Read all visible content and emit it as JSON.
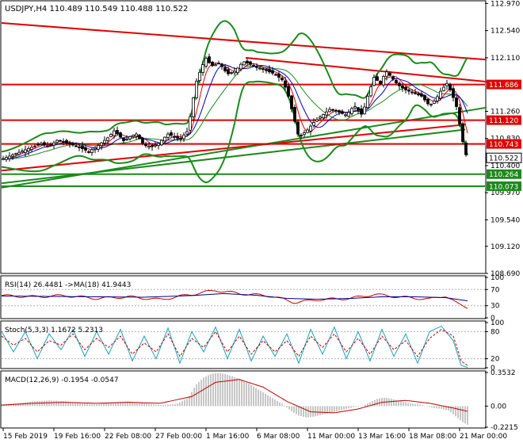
{
  "colors": {
    "candle": "#000000",
    "bollinger": "#1b8a1b",
    "trendline_red": "#e00000",
    "trendline_green": "#1b8a1b",
    "ma_fast": "#e00000",
    "ma_slow": "#0000c0",
    "rsi_line": "#c00000",
    "rsi_ma": "#00008b",
    "stoch_main": "#1aa3b5",
    "stoch_signal": "#c00000",
    "macd_hist": "#a0a0a0",
    "macd_signal": "#c00000",
    "label_red_bg": "#e00000",
    "label_green_bg": "#1b8a1b"
  },
  "chart_data": [
    {
      "type": "candlestick",
      "title": "USDJPY,H4  110.489 110.549 110.488 110.522",
      "ylim": [
        108.69,
        113.0
      ],
      "y_ticks": [
        "112.970",
        "112.540",
        "112.110",
        "111.260",
        "110.830",
        "110.400",
        "109.970",
        "109.540",
        "109.120",
        "108.690"
      ],
      "x_ticks": [
        "15 Feb 2019",
        "19 Feb 16:00",
        "22 Feb 08:00",
        "27 Feb 00:00",
        "1 Mar 16:00",
        "6 Mar 08:00",
        "11 Mar 00:00",
        "13 Mar 16:00",
        "18 Mar 08:00",
        "21 Mar 00:00"
      ],
      "close_path": [
        [
          0,
          110.5
        ],
        [
          20,
          110.6
        ],
        [
          40,
          110.7
        ],
        [
          50,
          110.75
        ],
        [
          60,
          110.7
        ],
        [
          70,
          110.8
        ],
        [
          85,
          110.75
        ],
        [
          100,
          110.68
        ],
        [
          110,
          110.62
        ],
        [
          120,
          110.7
        ],
        [
          135,
          110.85
        ],
        [
          142,
          110.95
        ],
        [
          148,
          110.88
        ],
        [
          155,
          110.78
        ],
        [
          160,
          110.85
        ],
        [
          170,
          110.9
        ],
        [
          180,
          110.72
        ],
        [
          190,
          110.7
        ],
        [
          198,
          110.75
        ],
        [
          210,
          110.9
        ],
        [
          225,
          110.82
        ],
        [
          235,
          110.95
        ],
        [
          245,
          111.7
        ],
        [
          252,
          111.95
        ],
        [
          258,
          112.1
        ],
        [
          265,
          111.98
        ],
        [
          275,
          112.02
        ],
        [
          285,
          111.85
        ],
        [
          295,
          111.9
        ],
        [
          305,
          112.05
        ],
        [
          315,
          112.0
        ],
        [
          325,
          111.95
        ],
        [
          335,
          111.9
        ],
        [
          345,
          111.85
        ],
        [
          355,
          111.75
        ],
        [
          362,
          111.5
        ],
        [
          368,
          111.2
        ],
        [
          375,
          110.85
        ],
        [
          385,
          110.95
        ],
        [
          395,
          111.1
        ],
        [
          405,
          111.2
        ],
        [
          415,
          111.3
        ],
        [
          425,
          111.25
        ],
        [
          435,
          111.2
        ],
        [
          445,
          111.35
        ],
        [
          455,
          111.2
        ],
        [
          462,
          111.5
        ],
        [
          470,
          111.8
        ],
        [
          478,
          111.7
        ],
        [
          485,
          111.9
        ],
        [
          492,
          111.8
        ],
        [
          500,
          111.68
        ],
        [
          510,
          111.6
        ],
        [
          520,
          111.55
        ],
        [
          530,
          111.5
        ],
        [
          540,
          111.35
        ],
        [
          548,
          111.45
        ],
        [
          555,
          111.6
        ],
        [
          562,
          111.7
        ],
        [
          568,
          111.55
        ],
        [
          575,
          111.3
        ],
        [
          580,
          110.9
        ],
        [
          585,
          110.6
        ],
        [
          588,
          110.52
        ]
      ],
      "price_lines": [
        {
          "name": "level-111686",
          "label": "111.686",
          "value": 111.686,
          "color": "red"
        },
        {
          "name": "level-111120",
          "label": "111.120",
          "value": 111.12,
          "color": "red"
        },
        {
          "name": "level-110743",
          "label": "110.743",
          "value": 110.743,
          "color": "red"
        },
        {
          "name": "level-110264",
          "label": "110.264",
          "value": 110.264,
          "color": "green"
        },
        {
          "name": "level-110073",
          "label": "110.073",
          "value": 110.073,
          "color": "green"
        }
      ],
      "current_price": {
        "label": "110.522",
        "value": 110.522
      },
      "trendlines": [
        {
          "name": "downtrend-long",
          "color": "red",
          "points": [
            [
              0,
              112.66
            ],
            [
              612,
              112.08
            ]
          ]
        },
        {
          "name": "downtrend-short",
          "color": "red",
          "points": [
            [
              308,
              112.11
            ],
            [
              612,
              111.73
            ]
          ]
        },
        {
          "name": "uptrend-red-lower",
          "color": "red",
          "points": [
            [
              0,
              110.32
            ],
            [
              585,
              111.05
            ]
          ]
        },
        {
          "name": "uptrend-green-1",
          "color": "green",
          "points": [
            [
              0,
              110.05
            ],
            [
              612,
              111.32
            ]
          ]
        },
        {
          "name": "uptrend-green-2",
          "color": "green",
          "points": [
            [
              0,
              110.12
            ],
            [
              585,
              110.97
            ]
          ]
        }
      ]
    },
    {
      "type": "line",
      "title": "RSI(14) 26.4481  ->MA(18) 41.9443",
      "ylim": [
        0,
        100
      ],
      "y_ticks": [
        "100",
        "70",
        "30",
        "0"
      ],
      "series": [
        {
          "name": "RSI(14)",
          "points": [
            [
              0,
              55
            ],
            [
              40,
              52
            ],
            [
              80,
              55
            ],
            [
              120,
              48
            ],
            [
              160,
              52
            ],
            [
              200,
              45
            ],
            [
              240,
              58
            ],
            [
              270,
              68
            ],
            [
              300,
              60
            ],
            [
              340,
              54
            ],
            [
              370,
              38
            ],
            [
              400,
              45
            ],
            [
              440,
              48
            ],
            [
              470,
              58
            ],
            [
              500,
              52
            ],
            [
              540,
              46
            ],
            [
              560,
              55
            ],
            [
              575,
              35
            ],
            [
              588,
              26
            ]
          ]
        },
        {
          "name": "MA(18)",
          "points": [
            [
              0,
              54
            ],
            [
              60,
              53
            ],
            [
              120,
              52
            ],
            [
              180,
              51
            ],
            [
              240,
              55
            ],
            [
              280,
              60
            ],
            [
              320,
              56
            ],
            [
              360,
              48
            ],
            [
              400,
              46
            ],
            [
              440,
              48
            ],
            [
              480,
              52
            ],
            [
              520,
              52
            ],
            [
              560,
              50
            ],
            [
              588,
              42
            ]
          ]
        }
      ]
    },
    {
      "type": "line",
      "title": "Stoch(5,3,3) 1.1672 5.2313",
      "ylim": [
        0,
        100
      ],
      "y_ticks": [
        "100",
        "80",
        "20",
        "0"
      ],
      "series": [
        {
          "name": "%K",
          "points": [
            [
              0,
              80
            ],
            [
              15,
              35
            ],
            [
              30,
              80
            ],
            [
              45,
              20
            ],
            [
              60,
              75
            ],
            [
              75,
              40
            ],
            [
              90,
              85
            ],
            [
              105,
              25
            ],
            [
              120,
              80
            ],
            [
              135,
              30
            ],
            [
              150,
              85
            ],
            [
              165,
              15
            ],
            [
              180,
              70
            ],
            [
              195,
              20
            ],
            [
              210,
              88
            ],
            [
              225,
              10
            ],
            [
              240,
              80
            ],
            [
              255,
              35
            ],
            [
              270,
              90
            ],
            [
              285,
              20
            ],
            [
              300,
              85
            ],
            [
              315,
              15
            ],
            [
              330,
              70
            ],
            [
              345,
              25
            ],
            [
              360,
              75
            ],
            [
              375,
              10
            ],
            [
              390,
              85
            ],
            [
              405,
              30
            ],
            [
              420,
              90
            ],
            [
              435,
              20
            ],
            [
              450,
              80
            ],
            [
              465,
              15
            ],
            [
              480,
              85
            ],
            [
              495,
              25
            ],
            [
              510,
              75
            ],
            [
              525,
              10
            ],
            [
              540,
              80
            ],
            [
              555,
              92
            ],
            [
              570,
              60
            ],
            [
              580,
              5
            ],
            [
              588,
              1
            ]
          ]
        },
        {
          "name": "%D",
          "points": [
            [
              0,
              70
            ],
            [
              15,
              50
            ],
            [
              30,
              65
            ],
            [
              45,
              35
            ],
            [
              60,
              60
            ],
            [
              75,
              50
            ],
            [
              90,
              75
            ],
            [
              105,
              40
            ],
            [
              120,
              65
            ],
            [
              135,
              45
            ],
            [
              150,
              70
            ],
            [
              165,
              30
            ],
            [
              180,
              55
            ],
            [
              195,
              35
            ],
            [
              210,
              75
            ],
            [
              225,
              25
            ],
            [
              240,
              65
            ],
            [
              255,
              45
            ],
            [
              270,
              80
            ],
            [
              285,
              35
            ],
            [
              300,
              70
            ],
            [
              315,
              30
            ],
            [
              330,
              60
            ],
            [
              345,
              35
            ],
            [
              360,
              60
            ],
            [
              375,
              25
            ],
            [
              390,
              70
            ],
            [
              405,
              45
            ],
            [
              420,
              75
            ],
            [
              435,
              35
            ],
            [
              450,
              65
            ],
            [
              465,
              30
            ],
            [
              480,
              70
            ],
            [
              495,
              40
            ],
            [
              510,
              60
            ],
            [
              525,
              25
            ],
            [
              540,
              65
            ],
            [
              555,
              85
            ],
            [
              570,
              70
            ],
            [
              580,
              15
            ],
            [
              588,
              5
            ]
          ]
        }
      ]
    },
    {
      "type": "bar",
      "title": "MACD(12,26,9) -0.1954 -0.0547",
      "ylim": [
        -0.2215,
        0.3532
      ],
      "y_ticks": [
        "0.3532",
        "0.00",
        "-0.2215"
      ],
      "histogram": [
        [
          0,
          0.02
        ],
        [
          20,
          0.03
        ],
        [
          40,
          0.05
        ],
        [
          60,
          0.06
        ],
        [
          80,
          0.05
        ],
        [
          100,
          0.03
        ],
        [
          120,
          0.02
        ],
        [
          140,
          0.04
        ],
        [
          160,
          0.05
        ],
        [
          180,
          0.03
        ],
        [
          200,
          0.01
        ],
        [
          220,
          0.02
        ],
        [
          235,
          0.08
        ],
        [
          245,
          0.22
        ],
        [
          255,
          0.3
        ],
        [
          265,
          0.34
        ],
        [
          275,
          0.35
        ],
        [
          285,
          0.33
        ],
        [
          295,
          0.3
        ],
        [
          305,
          0.27
        ],
        [
          315,
          0.22
        ],
        [
          325,
          0.17
        ],
        [
          335,
          0.12
        ],
        [
          345,
          0.07
        ],
        [
          355,
          0.02
        ],
        [
          365,
          -0.05
        ],
        [
          375,
          -0.1
        ],
        [
          385,
          -0.12
        ],
        [
          395,
          -0.11
        ],
        [
          405,
          -0.09
        ],
        [
          415,
          -0.07
        ],
        [
          425,
          -0.05
        ],
        [
          435,
          -0.03
        ],
        [
          445,
          -0.01
        ],
        [
          455,
          0.0
        ],
        [
          465,
          0.04
        ],
        [
          475,
          0.08
        ],
        [
          485,
          0.09
        ],
        [
          495,
          0.07
        ],
        [
          505,
          0.05
        ],
        [
          515,
          0.03
        ],
        [
          525,
          0.02
        ],
        [
          535,
          0.0
        ],
        [
          545,
          -0.02
        ],
        [
          555,
          -0.03
        ],
        [
          565,
          -0.05
        ],
        [
          575,
          -0.12
        ],
        [
          582,
          -0.17
        ],
        [
          588,
          -0.195
        ]
      ],
      "signal": [
        [
          0,
          0.01
        ],
        [
          40,
          0.03
        ],
        [
          80,
          0.04
        ],
        [
          120,
          0.03
        ],
        [
          160,
          0.04
        ],
        [
          200,
          0.03
        ],
        [
          240,
          0.1
        ],
        [
          270,
          0.25
        ],
        [
          300,
          0.28
        ],
        [
          330,
          0.2
        ],
        [
          360,
          0.05
        ],
        [
          390,
          -0.06
        ],
        [
          420,
          -0.07
        ],
        [
          450,
          -0.03
        ],
        [
          480,
          0.04
        ],
        [
          510,
          0.06
        ],
        [
          540,
          0.03
        ],
        [
          570,
          -0.02
        ],
        [
          588,
          -0.055
        ]
      ]
    }
  ]
}
